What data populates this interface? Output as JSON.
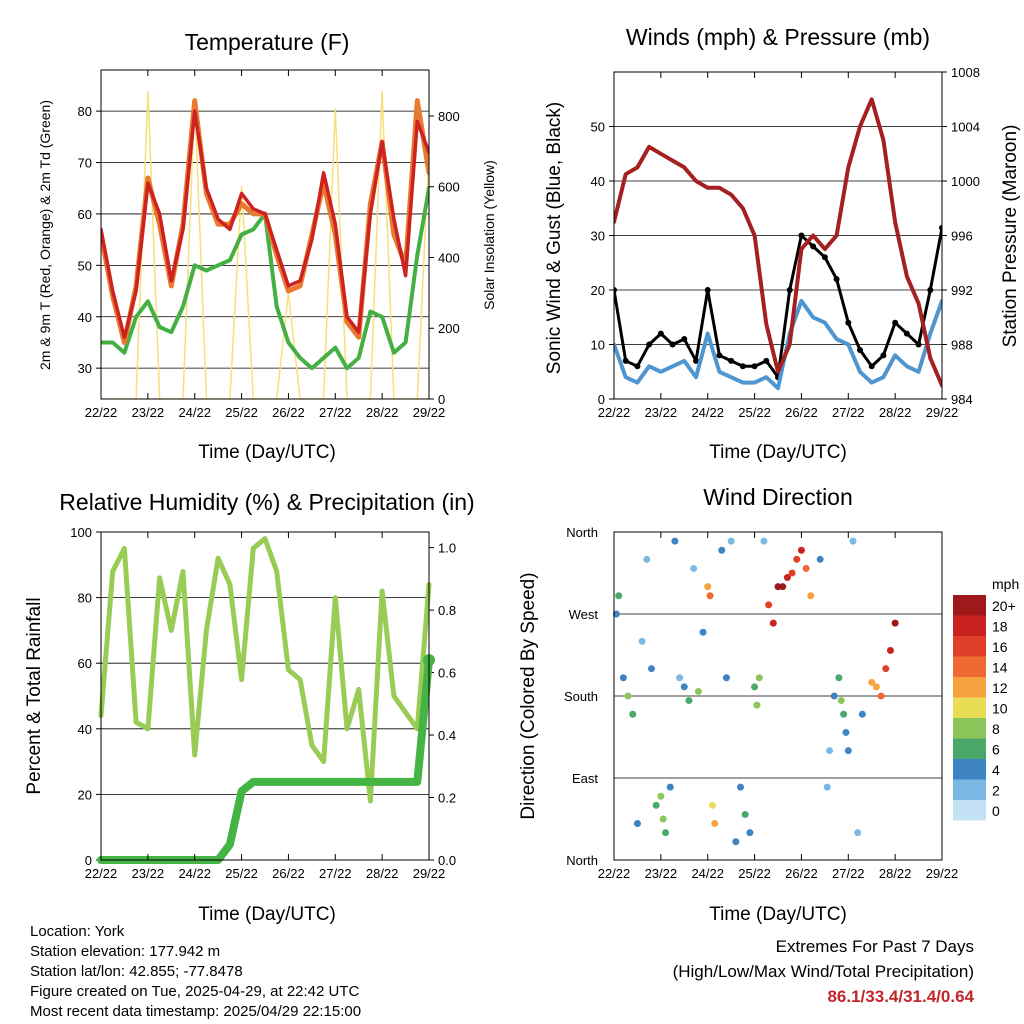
{
  "footer": {
    "location": "Location: York",
    "elevation": "Station elevation: 177.942 m",
    "latlon": "Station lat/lon: 42.855; -77.8478",
    "created": "Figure created on Tue, 2025-04-29, at 22:42 UTC",
    "timestamp": "Most recent data timestamp: 2025/04/29 22:15:00",
    "extremes_title": "Extremes For Past 7 Days",
    "extremes_subtitle": "(High/Low/Max Wind/Total Precipitation)",
    "extremes_values": "86.1/33.4/31.4/0.64"
  },
  "colors": {
    "temp_2m": "#e8792e",
    "temp_9m": "#cc2222",
    "dewpoint": "#44b044",
    "insolation": "#f7e07a",
    "wind": "#4f95cf",
    "gust": "#000000",
    "pressure": "#a52020",
    "rh": "#99cc55",
    "precip": "#44b444"
  },
  "chart_data": [
    {
      "type": "line",
      "title": "Temperature (F)",
      "xlabel": "Time (Day/UTC)",
      "ylabel": "2m & 9m T (Red, Orange) & 2m Td (Green)",
      "ylabel_right": "Solar Insolation (Yellow)",
      "x_ticks": [
        "22/22",
        "23/22",
        "24/22",
        "25/22",
        "26/22",
        "27/22",
        "28/22",
        "29/22"
      ],
      "ylim": [
        24,
        88
      ],
      "y_ticks": [
        30,
        40,
        50,
        60,
        70,
        80
      ],
      "ylim_right": [
        0,
        930
      ],
      "y_ticks_right": [
        0,
        200,
        400,
        600,
        800
      ],
      "x": [
        0,
        0.25,
        0.5,
        0.75,
        1,
        1.25,
        1.5,
        1.75,
        2,
        2.25,
        2.5,
        2.75,
        3,
        3.25,
        3.5,
        3.75,
        4,
        4.25,
        4.5,
        4.75,
        5,
        5.25,
        5.5,
        5.75,
        6,
        6.25,
        6.5,
        6.75,
        7
      ],
      "series": [
        {
          "name": "9m T",
          "values": [
            57,
            45,
            36,
            45,
            66,
            60,
            47,
            57,
            80,
            65,
            59,
            57,
            64,
            61,
            60,
            53,
            46,
            47,
            55,
            68,
            58,
            40,
            37,
            60,
            74,
            59,
            48,
            78,
            72
          ]
        },
        {
          "name": "2m T",
          "values": [
            56,
            44,
            35,
            46,
            67,
            58,
            46,
            58,
            82,
            64,
            58,
            58,
            62,
            60,
            60,
            52,
            45,
            46,
            56,
            66,
            56,
            39,
            36,
            62,
            74,
            56,
            50,
            82,
            68
          ]
        },
        {
          "name": "2m Td",
          "values": [
            35,
            35,
            33,
            40,
            43,
            38,
            37,
            42,
            50,
            49,
            50,
            51,
            56,
            57,
            60,
            42,
            35,
            32,
            30,
            32,
            34,
            30,
            32,
            41,
            40,
            33,
            35,
            52,
            65
          ]
        },
        {
          "name": "Solar Insolation",
          "values": [
            0,
            0,
            0,
            0,
            870,
            0,
            0,
            0,
            850,
            0,
            0,
            0,
            600,
            0,
            0,
            0,
            300,
            0,
            0,
            0,
            820,
            0,
            0,
            0,
            870,
            0,
            0,
            0,
            700
          ]
        }
      ]
    },
    {
      "type": "line",
      "title": "Winds (mph) & Pressure (mb)",
      "xlabel": "Time (Day/UTC)",
      "ylabel": "Sonic Wind & Gust (Blue, Black)",
      "ylabel_right": "Station Pressure (Maroon)",
      "x_ticks": [
        "22/22",
        "23/22",
        "24/22",
        "25/22",
        "26/22",
        "27/22",
        "28/22",
        "29/22"
      ],
      "ylim": [
        0,
        60
      ],
      "y_ticks": [
        0,
        10,
        20,
        30,
        40,
        50
      ],
      "ylim_right": [
        984,
        1008
      ],
      "y_ticks_right": [
        984,
        988,
        992,
        996,
        1000,
        1004,
        1008
      ],
      "x": [
        0,
        0.25,
        0.5,
        0.75,
        1,
        1.25,
        1.5,
        1.75,
        2,
        2.25,
        2.5,
        2.75,
        3,
        3.25,
        3.5,
        3.75,
        4,
        4.25,
        4.5,
        4.75,
        5,
        5.25,
        5.5,
        5.75,
        6,
        6.25,
        6.5,
        6.75,
        7
      ],
      "series": [
        {
          "name": "Sonic Wind",
          "values": [
            10,
            4,
            3,
            6,
            5,
            6,
            7,
            4,
            12,
            5,
            4,
            3,
            3,
            4,
            2,
            12,
            18,
            15,
            14,
            11,
            10,
            5,
            3,
            4,
            8,
            6,
            5,
            12,
            18
          ]
        },
        {
          "name": "Gust",
          "values": [
            20,
            7,
            6,
            10,
            12,
            10,
            11,
            7,
            20,
            8,
            7,
            6,
            6,
            7,
            4,
            20,
            30,
            28,
            26,
            22,
            14,
            9,
            6,
            8,
            14,
            12,
            10,
            20,
            31.4
          ]
        },
        {
          "name": "Station Pressure",
          "values": [
            997,
            1000.5,
            1001,
            1002.5,
            1002,
            1001.5,
            1001,
            1000,
            999.5,
            999.5,
            999,
            998,
            996,
            989.5,
            986,
            988,
            995,
            996,
            995,
            996,
            1001,
            1004,
            1006,
            1003,
            997,
            993,
            991,
            987,
            985
          ]
        }
      ]
    },
    {
      "type": "line",
      "title": "Relative Humidity (%) & Precipitation (in)",
      "xlabel": "Time (Day/UTC)",
      "ylabel": "Percent & Total Rainfall",
      "x_ticks": [
        "22/22",
        "23/22",
        "24/22",
        "25/22",
        "26/22",
        "27/22",
        "28/22",
        "29/22"
      ],
      "ylim": [
        0,
        100
      ],
      "y_ticks": [
        0,
        20,
        40,
        60,
        80,
        100
      ],
      "ylim_right": [
        0,
        1.05
      ],
      "y_ticks_right": [
        0.0,
        0.2,
        0.4,
        0.6,
        0.8,
        1.0
      ],
      "x": [
        0,
        0.25,
        0.5,
        0.75,
        1,
        1.25,
        1.5,
        1.75,
        2,
        2.25,
        2.5,
        2.75,
        3,
        3.25,
        3.5,
        3.75,
        4,
        4.25,
        4.5,
        4.75,
        5,
        5.25,
        5.5,
        5.75,
        6,
        6.25,
        6.5,
        6.75,
        7
      ],
      "series": [
        {
          "name": "RH",
          "values": [
            44,
            88,
            95,
            42,
            40,
            86,
            70,
            88,
            32,
            70,
            92,
            84,
            55,
            95,
            98,
            88,
            58,
            55,
            35,
            30,
            80,
            40,
            52,
            18,
            82,
            50,
            45,
            40,
            84
          ]
        },
        {
          "name": "Precipitation",
          "values": [
            0,
            0,
            0,
            0,
            0,
            0,
            0,
            0,
            0,
            0,
            0,
            0.05,
            0.22,
            0.25,
            0.25,
            0.25,
            0.25,
            0.25,
            0.25,
            0.25,
            0.25,
            0.25,
            0.25,
            0.25,
            0.25,
            0.25,
            0.25,
            0.25,
            0.64
          ]
        }
      ]
    },
    {
      "type": "scatter",
      "title": "Wind Direction",
      "xlabel": "Time (Day/UTC)",
      "ylabel": "Direction (Colored By Speed)",
      "x_ticks": [
        "22/22",
        "23/22",
        "24/22",
        "25/22",
        "26/22",
        "27/22",
        "28/22",
        "29/22"
      ],
      "y_ticks": [
        "North",
        "East",
        "South",
        "West",
        "North"
      ],
      "ylim": [
        0,
        360
      ],
      "legend": {
        "title": "mph",
        "labels": [
          "20+",
          "18",
          "16",
          "14",
          "12",
          "10",
          "8",
          "6",
          "4",
          "2",
          "0"
        ],
        "colors": [
          "#9e1a1a",
          "#c8231f",
          "#e0402a",
          "#ef6a33",
          "#f6a33f",
          "#e8dd55",
          "#8cc65a",
          "#4aa86a",
          "#3f84c2",
          "#7cb8e4",
          "#c4e2f5"
        ]
      },
      "points": [
        [
          0.05,
          270,
          4
        ],
        [
          0.1,
          290,
          6
        ],
        [
          0.2,
          200,
          4
        ],
        [
          0.3,
          180,
          8
        ],
        [
          0.4,
          160,
          6
        ],
        [
          0.5,
          40,
          4
        ],
        [
          0.6,
          240,
          2
        ],
        [
          0.7,
          330,
          2
        ],
        [
          0.8,
          210,
          4
        ],
        [
          0.9,
          60,
          6
        ],
        [
          1.0,
          70,
          8
        ],
        [
          1.05,
          45,
          8
        ],
        [
          1.1,
          30,
          6
        ],
        [
          1.2,
          80,
          4
        ],
        [
          1.3,
          350,
          4
        ],
        [
          1.4,
          200,
          2
        ],
        [
          1.5,
          190,
          4
        ],
        [
          1.6,
          175,
          6
        ],
        [
          1.7,
          320,
          2
        ],
        [
          1.8,
          185,
          8
        ],
        [
          1.9,
          250,
          4
        ],
        [
          2.0,
          300,
          12
        ],
        [
          2.05,
          290,
          14
        ],
        [
          2.1,
          60,
          10
        ],
        [
          2.15,
          40,
          12
        ],
        [
          2.3,
          340,
          4
        ],
        [
          2.4,
          200,
          4
        ],
        [
          2.5,
          350,
          2
        ],
        [
          2.6,
          20,
          4
        ],
        [
          2.7,
          80,
          4
        ],
        [
          2.8,
          50,
          6
        ],
        [
          2.9,
          30,
          4
        ],
        [
          3.0,
          190,
          6
        ],
        [
          3.05,
          170,
          8
        ],
        [
          3.1,
          200,
          8
        ],
        [
          3.2,
          350,
          2
        ],
        [
          3.3,
          280,
          16
        ],
        [
          3.4,
          260,
          18
        ],
        [
          3.5,
          300,
          20
        ],
        [
          3.6,
          300,
          20
        ],
        [
          3.7,
          310,
          18
        ],
        [
          3.8,
          315,
          16
        ],
        [
          3.9,
          330,
          16
        ],
        [
          4.0,
          340,
          18
        ],
        [
          4.1,
          320,
          14
        ],
        [
          4.2,
          290,
          12
        ],
        [
          4.4,
          330,
          4
        ],
        [
          4.55,
          80,
          2
        ],
        [
          4.6,
          120,
          2
        ],
        [
          4.7,
          180,
          4
        ],
        [
          4.8,
          200,
          6
        ],
        [
          4.85,
          175,
          8
        ],
        [
          4.9,
          160,
          6
        ],
        [
          4.95,
          140,
          4
        ],
        [
          5.0,
          120,
          4
        ],
        [
          5.1,
          350,
          2
        ],
        [
          5.2,
          30,
          2
        ],
        [
          5.3,
          160,
          4
        ],
        [
          5.5,
          195,
          12
        ],
        [
          5.6,
          190,
          12
        ],
        [
          5.7,
          180,
          14
        ],
        [
          5.8,
          210,
          16
        ],
        [
          5.9,
          230,
          18
        ],
        [
          6.0,
          260,
          20
        ]
      ]
    }
  ]
}
